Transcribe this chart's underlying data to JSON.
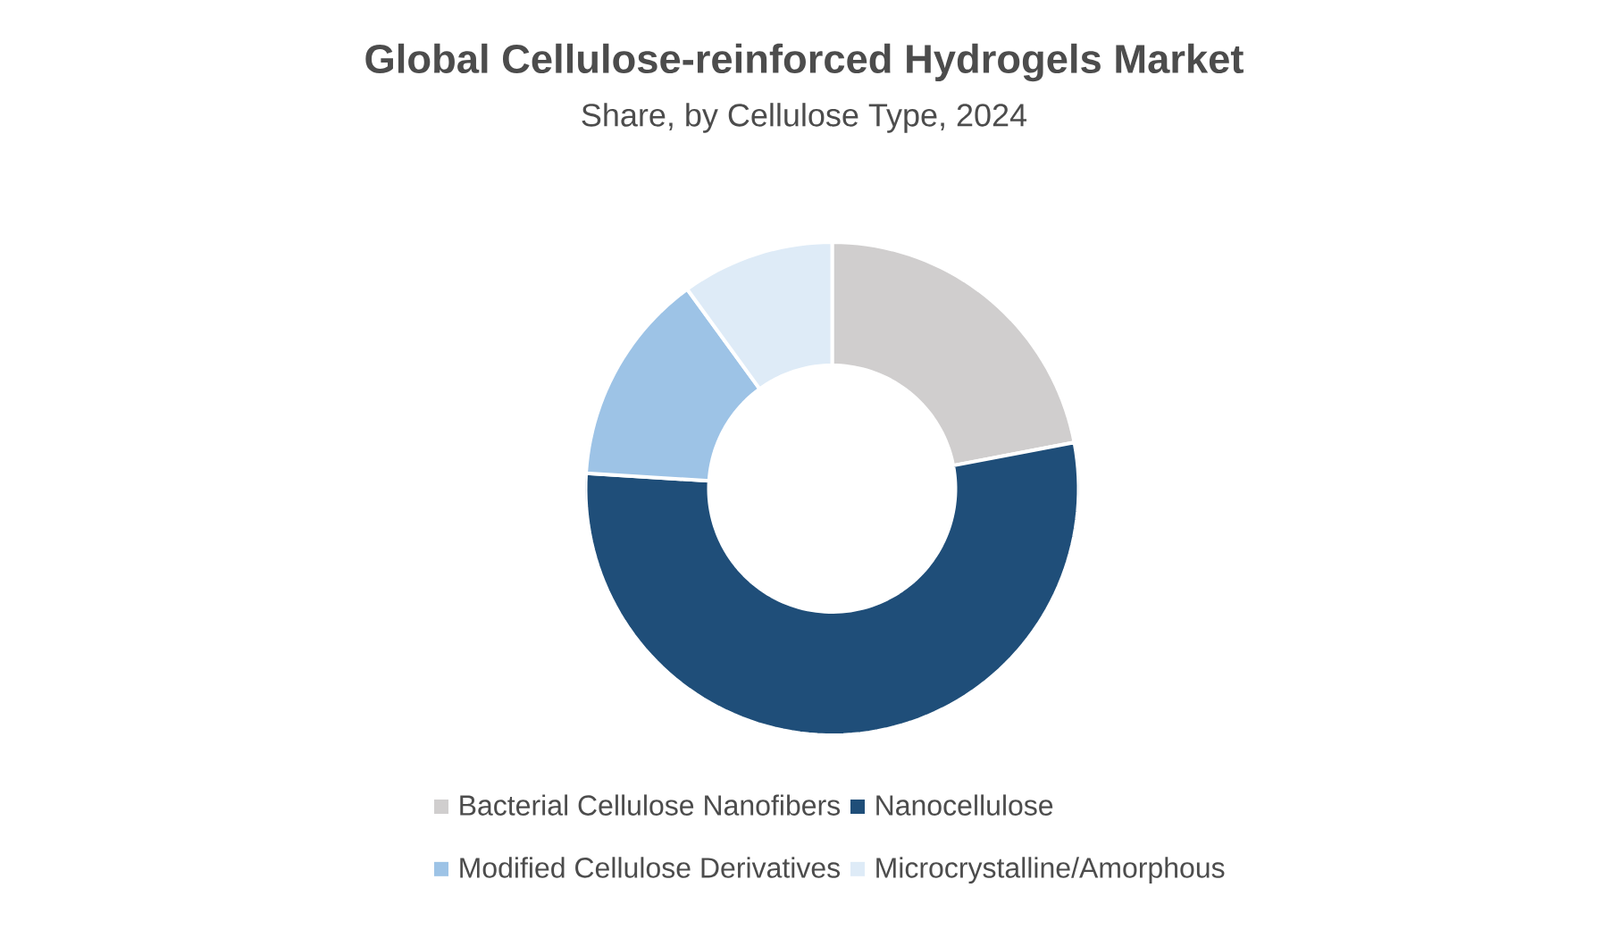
{
  "chart_data": {
    "type": "donut",
    "title": "Global Cellulose-reinforced Hydrogels Market",
    "subtitle": "Share, by Cellulose Type, 2024",
    "categories": [
      "Bacterial Cellulose Nanofibers",
      "Nanocellulose",
      "Modified Cellulose Derivatives",
      "Microcrystalline/Amorphous"
    ],
    "values": [
      22,
      54,
      14,
      10
    ],
    "colors": [
      "#d0cece",
      "#1f4e79",
      "#9dc3e6",
      "#deebf7"
    ],
    "legend": "bottom"
  }
}
